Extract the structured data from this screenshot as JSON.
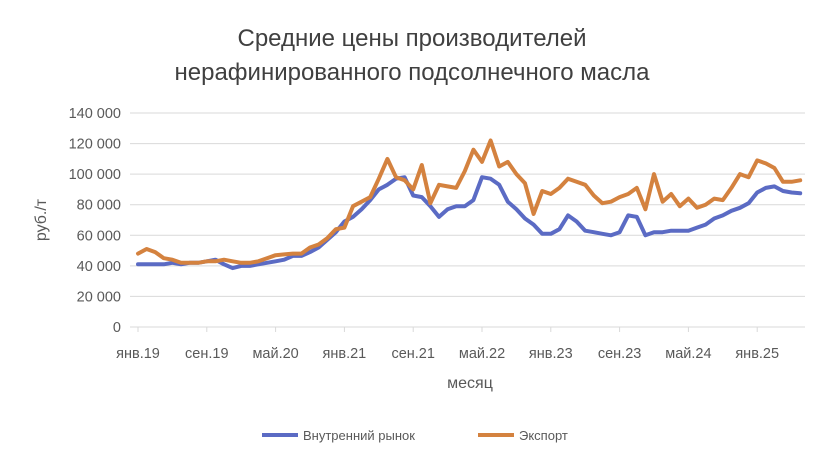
{
  "chart_data": {
    "type": "line",
    "title": [
      "Средние цены производителей",
      "нерафинированного подсолнечного масла"
    ],
    "xlabel": "месяц",
    "ylabel": "руб./т",
    "ylim": [
      0,
      140000
    ],
    "y_ticks": [
      0,
      20000,
      40000,
      60000,
      80000,
      100000,
      120000,
      140000
    ],
    "y_tick_labels": [
      "0",
      "20 000",
      "40 000",
      "60 000",
      "80 000",
      "100 000",
      "120 000",
      "140 000"
    ],
    "grid": true,
    "legend_position": "bottom",
    "categories": [
      "янв.19",
      "фев.19",
      "мар.19",
      "апр.19",
      "май.19",
      "июн.19",
      "июл.19",
      "авг.19",
      "сен.19",
      "окт.19",
      "ноя.19",
      "дек.19",
      "янв.20",
      "фев.20",
      "мар.20",
      "апр.20",
      "май.20",
      "июн.20",
      "июл.20",
      "авг.20",
      "сен.20",
      "окт.20",
      "ноя.20",
      "дек.20",
      "янв.21",
      "фев.21",
      "мар.21",
      "апр.21",
      "май.21",
      "июн.21",
      "июл.21",
      "авг.21",
      "сен.21",
      "окт.21",
      "ноя.21",
      "дек.21",
      "янв.22",
      "фев.22",
      "мар.22",
      "апр.22",
      "май.22",
      "июн.22",
      "июл.22",
      "авг.22",
      "сен.22",
      "окт.22",
      "ноя.22",
      "дек.22",
      "янв.23",
      "фев.23",
      "мар.23",
      "апр.23",
      "май.23",
      "июн.23",
      "июл.23",
      "авг.23",
      "сен.23",
      "окт.23",
      "ноя.23",
      "дек.23",
      "янв.24",
      "фев.24",
      "мар.24",
      "апр.24",
      "май.24",
      "июн.24",
      "июл.24",
      "авг.24",
      "сен.24",
      "окт.24",
      "ноя.24",
      "дек.24",
      "янв.25",
      "фев.25",
      "мар.25",
      "апр.25",
      "май.25",
      "июн.25"
    ],
    "x_tick_labels": [
      "янв.19",
      "сен.19",
      "май.20",
      "янв.21",
      "сен.21",
      "май.22",
      "янв.23",
      "сен.23",
      "май.24",
      "янв.25"
    ],
    "x_tick_every": 8,
    "series": [
      {
        "name": "Внутренний рынок",
        "color": "#5B6BC4",
        "values": [
          41000,
          41000,
          41000,
          41000,
          42000,
          41000,
          42000,
          42000,
          43000,
          44000,
          41000,
          38500,
          40000,
          40000,
          41000,
          42000,
          43000,
          44000,
          46500,
          46500,
          49000,
          52000,
          57000,
          62000,
          69000,
          72000,
          77000,
          83000,
          90000,
          93000,
          97000,
          98000,
          86000,
          85000,
          79000,
          72000,
          77000,
          79000,
          79000,
          83000,
          98000,
          97000,
          93000,
          82000,
          77000,
          71000,
          67000,
          61000,
          61000,
          64000,
          73000,
          69000,
          63000,
          62000,
          61000,
          60000,
          62000,
          73000,
          72000,
          60000,
          62000,
          62000,
          63000,
          63000,
          63000,
          65000,
          67000,
          71000,
          73000,
          76000,
          78000,
          81000,
          88000,
          91000,
          92000,
          89000,
          88000,
          87500
        ]
      },
      {
        "name": "Экспорт",
        "color": "#D4823F",
        "values": [
          48000,
          51000,
          49000,
          45000,
          44000,
          42000,
          42000,
          42000,
          43000,
          43000,
          44000,
          43000,
          42000,
          42000,
          43000,
          45000,
          47000,
          47500,
          48000,
          48000,
          52000,
          54000,
          58000,
          64000,
          65000,
          79000,
          82000,
          85000,
          97000,
          110000,
          98000,
          96000,
          90000,
          106000,
          81000,
          93000,
          92000,
          91000,
          102000,
          116000,
          108000,
          122000,
          105000,
          108000,
          100000,
          94000,
          74000,
          89000,
          87000,
          91000,
          97000,
          95000,
          93000,
          86000,
          81000,
          82000,
          85000,
          87000,
          91000,
          77000,
          100000,
          82000,
          87000,
          79000,
          84000,
          78000,
          80000,
          84000,
          83000,
          91000,
          100000,
          98000,
          109000,
          107000,
          104000,
          95000,
          95000,
          96000
        ]
      }
    ]
  }
}
